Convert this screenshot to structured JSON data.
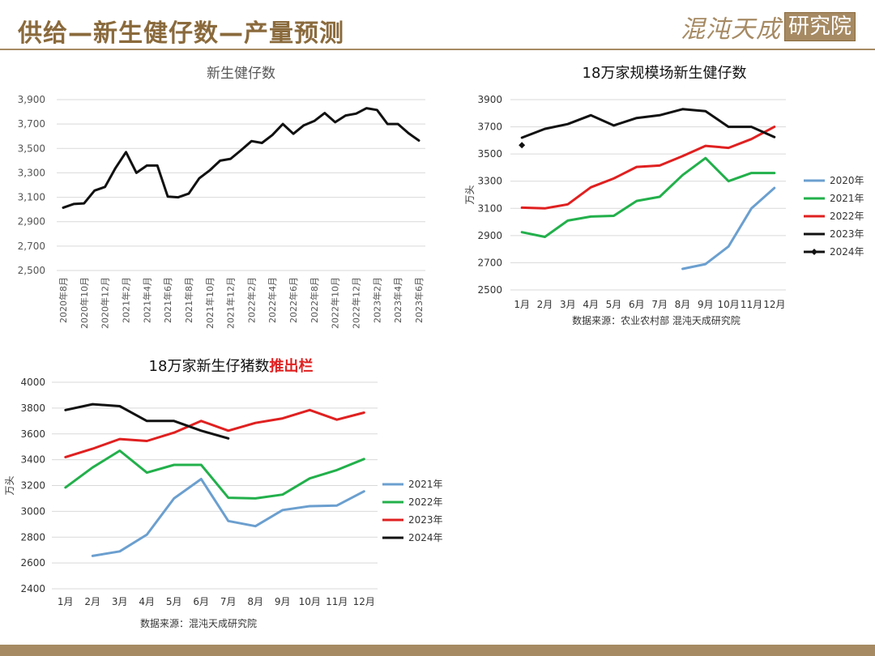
{
  "header": {
    "title": "供给—新生健仔数—产量预测",
    "logo_script": "混沌天成",
    "logo_box": "研究院"
  },
  "colors": {
    "gold": "#a68a63",
    "title_gold": "#8a6a3c",
    "series_blue": "#6b9fcf",
    "series_green": "#22b04b",
    "series_red": "#e02020",
    "series_black": "#111111",
    "highlight_red": "#e02020"
  },
  "chart_data": [
    {
      "id": "chart1",
      "type": "line",
      "title": "新生健仔数",
      "ylim": [
        2500,
        3900
      ],
      "yticks": [
        "2,500",
        "2,700",
        "2,900",
        "3,100",
        "3,300",
        "3,500",
        "3,700",
        "3,900"
      ],
      "ytick_values": [
        2500,
        2700,
        2900,
        3100,
        3300,
        3500,
        3700,
        3900
      ],
      "grid": true,
      "x": [
        "2020年8月",
        "2020年9月",
        "2020年10月",
        "2020年11月",
        "2020年12月",
        "2021年1月",
        "2021年2月",
        "2021年3月",
        "2021年4月",
        "2021年5月",
        "2021年6月",
        "2021年7月",
        "2021年8月",
        "2021年9月",
        "2021年10月",
        "2021年11月",
        "2021年12月",
        "2022年1月",
        "2022年2月",
        "2022年3月",
        "2022年4月",
        "2022年5月",
        "2022年6月",
        "2022年7月",
        "2022年8月",
        "2022年9月",
        "2022年10月",
        "2022年11月",
        "2022年12月",
        "2023年1月",
        "2023年2月",
        "2023年3月",
        "2023年4月",
        "2023年5月",
        "2023年6月"
      ],
      "xtick_labels": [
        "2020年8月",
        "2020年10月",
        "2020年12月",
        "2021年2月",
        "2021年4月",
        "2021年6月",
        "2021年8月",
        "2021年10月",
        "2021年12月",
        "2022年2月",
        "2022年4月",
        "2022年6月",
        "2022年8月",
        "2022年10月",
        "2022年12月",
        "2023年2月",
        "2023年4月",
        "2023年6月"
      ],
      "series": [
        {
          "color": "#111111",
          "values": [
            3015,
            3045,
            3050,
            3155,
            3185,
            3340,
            3470,
            3300,
            3360,
            3360,
            3105,
            3100,
            3130,
            3255,
            3320,
            3400,
            3415,
            3485,
            3560,
            3545,
            3610,
            3700,
            3620,
            3690,
            3725,
            3790,
            3715,
            3770,
            3785,
            3830,
            3815,
            3700,
            3700,
            3625,
            3565
          ]
        }
      ]
    },
    {
      "id": "chart2",
      "type": "line",
      "title": "18万家规模场新生健仔数",
      "ylabel": "万头",
      "ylim": [
        2500,
        3900
      ],
      "yticks": [
        "2500",
        "2700",
        "2900",
        "3100",
        "3300",
        "3500",
        "3700",
        "3900"
      ],
      "ytick_values": [
        2500,
        2700,
        2900,
        3100,
        3300,
        3500,
        3700,
        3900
      ],
      "grid": true,
      "categories": [
        "1月",
        "2月",
        "3月",
        "4月",
        "5月",
        "6月",
        "7月",
        "8月",
        "9月",
        "10月",
        "11月",
        "12月"
      ],
      "legend_position": "right",
      "source": "数据来源：农业农村部 混沌天成研究院",
      "series": [
        {
          "name": "2020年",
          "color": "#6b9fcf",
          "values": [
            null,
            null,
            null,
            null,
            null,
            null,
            null,
            2655,
            2690,
            2820,
            3100,
            3250
          ]
        },
        {
          "name": "2021年",
          "color": "#22b04b",
          "values": [
            2925,
            2890,
            3010,
            3040,
            3045,
            3155,
            3185,
            3345,
            3470,
            3300,
            3360,
            3360
          ]
        },
        {
          "name": "2022年",
          "color": "#e02020",
          "values": [
            3105,
            3100,
            3130,
            3255,
            3320,
            3405,
            3415,
            3485,
            3560,
            3545,
            3610,
            3700
          ]
        },
        {
          "name": "2023年",
          "color": "#111111",
          "values": [
            3620,
            3685,
            3720,
            3785,
            3710,
            3765,
            3785,
            3830,
            3815,
            3700,
            3700,
            3625
          ]
        },
        {
          "name": "2024年",
          "color": "#111111",
          "marker": "diamond",
          "values": [
            3565,
            null,
            null,
            null,
            null,
            null,
            null,
            null,
            null,
            null,
            null,
            null
          ]
        }
      ]
    },
    {
      "id": "chart3",
      "type": "line",
      "title_main": "18万家新生仔猪数",
      "title_highlight": "推出栏",
      "ylabel": "万头",
      "ylim": [
        2400,
        4000
      ],
      "yticks": [
        "2400",
        "2600",
        "2800",
        "3000",
        "3200",
        "3400",
        "3600",
        "3800",
        "4000"
      ],
      "ytick_values": [
        2400,
        2600,
        2800,
        3000,
        3200,
        3400,
        3600,
        3800,
        4000
      ],
      "grid": true,
      "categories": [
        "1月",
        "2月",
        "3月",
        "4月",
        "5月",
        "6月",
        "7月",
        "8月",
        "9月",
        "10月",
        "11月",
        "12月"
      ],
      "legend_position": "right",
      "source": "数据来源：混沌天成研究院",
      "series": [
        {
          "name": "2021年",
          "color": "#6b9fcf",
          "values": [
            null,
            2655,
            2690,
            2820,
            3100,
            3250,
            2925,
            2885,
            3010,
            3040,
            3045,
            3155
          ]
        },
        {
          "name": "2022年",
          "color": "#22b04b",
          "values": [
            3185,
            3340,
            3470,
            3300,
            3360,
            3360,
            3105,
            3100,
            3130,
            3255,
            3320,
            3405
          ]
        },
        {
          "name": "2023年",
          "color": "#e02020",
          "values": [
            3420,
            3485,
            3560,
            3545,
            3610,
            3700,
            3625,
            3685,
            3720,
            3785,
            3710,
            3765
          ]
        },
        {
          "name": "2024年",
          "color": "#111111",
          "values": [
            3785,
            3830,
            3815,
            3700,
            3700,
            3625,
            3565,
            null,
            null,
            null,
            null,
            null
          ]
        }
      ]
    }
  ]
}
